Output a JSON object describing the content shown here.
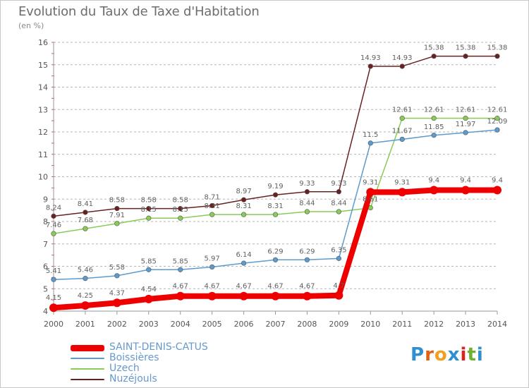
{
  "header": {
    "title": "Evolution du Taux de Taxe d'Habitation",
    "units": "(en %)"
  },
  "brand": {
    "letters": [
      "P",
      "r",
      "o",
      "x",
      "i",
      "t",
      "i"
    ],
    "colors": [
      "#2f8fd0",
      "#e06010",
      "#f0a020",
      "#2f8fd0",
      "#e02020",
      "#70b030",
      "#2f8fd0"
    ]
  },
  "colors": {
    "grid": "#b5b5b5",
    "axis": "#9a9a9a",
    "tick_mark": "#e05050"
  },
  "chart_data": {
    "type": "line",
    "title": "Evolution du Taux de Taxe d'Habitation",
    "xlabel": "",
    "ylabel": "(en %)",
    "x": [
      "2000",
      "2001",
      "2002",
      "2003",
      "2004",
      "2005",
      "2006",
      "2007",
      "2008",
      "2009",
      "2010",
      "2011",
      "2012",
      "2013",
      "2014"
    ],
    "ylim": [
      4,
      16
    ],
    "yticks": [
      "4",
      "5",
      "6",
      "7",
      "8",
      "9",
      "10",
      "11",
      "12",
      "13",
      "14",
      "15",
      "16"
    ],
    "grid": "horizontal dashed",
    "legend_position": "bottom-left",
    "series": [
      {
        "name": "Nuzéjouls",
        "color": "#6b2020",
        "values": [
          8.24,
          8.41,
          8.58,
          8.58,
          8.58,
          8.71,
          8.97,
          9.19,
          9.33,
          9.33,
          14.93,
          14.93,
          15.38,
          15.38,
          15.38
        ],
        "labels": [
          "8.24",
          "8.41",
          "8.58",
          "8.58",
          "8.58",
          "8.71",
          "8.97",
          "9.19",
          "9.33",
          "9.33",
          "14.93",
          "14.93",
          "15.38",
          "15.38",
          "15.38"
        ]
      },
      {
        "name": "Uzech",
        "color": "#88cc55",
        "values": [
          7.46,
          7.68,
          7.91,
          8.15,
          8.15,
          8.31,
          8.31,
          8.31,
          8.44,
          8.44,
          8.61,
          12.61,
          12.61,
          12.61,
          12.61
        ],
        "labels": [
          "7.46",
          "7.68",
          "7.91",
          "8.15",
          "8.15",
          "8.31",
          "8.31",
          "8.31",
          "8.44",
          "8.44",
          "8.61",
          "12.61",
          "12.61",
          "12.61",
          "12.61"
        ]
      },
      {
        "name": "Boissières",
        "color": "#5b9bd0",
        "values": [
          5.41,
          5.46,
          5.58,
          5.85,
          5.85,
          5.97,
          6.14,
          6.29,
          6.29,
          6.35,
          11.5,
          11.67,
          11.85,
          11.97,
          12.09
        ],
        "labels": [
          "5.41",
          "5.46",
          "5.58",
          "5.85",
          "5.85",
          "5.97",
          "6.14",
          "6.29",
          "6.29",
          "6.35",
          "11.5",
          "11.67",
          "11.85",
          "11.97",
          "12.09"
        ]
      },
      {
        "name": "SAINT-DENIS-CATUS",
        "color": "#ee0000",
        "values": [
          4.15,
          4.25,
          4.37,
          4.54,
          4.67,
          4.67,
          4.67,
          4.67,
          4.67,
          4.7,
          9.31,
          9.31,
          9.4,
          9.4,
          9.4
        ],
        "labels": [
          "4.15",
          "4.25",
          "4.37",
          "4.54",
          "4.67",
          "4.67",
          "4.67",
          "4.67",
          "4.67",
          "4.7",
          "9.31",
          "9.31",
          "9.4",
          "9.4",
          "9.4"
        ]
      }
    ],
    "legend_order": [
      "SAINT-DENIS-CATUS",
      "Boissières",
      "Uzech",
      "Nuzéjouls"
    ]
  }
}
